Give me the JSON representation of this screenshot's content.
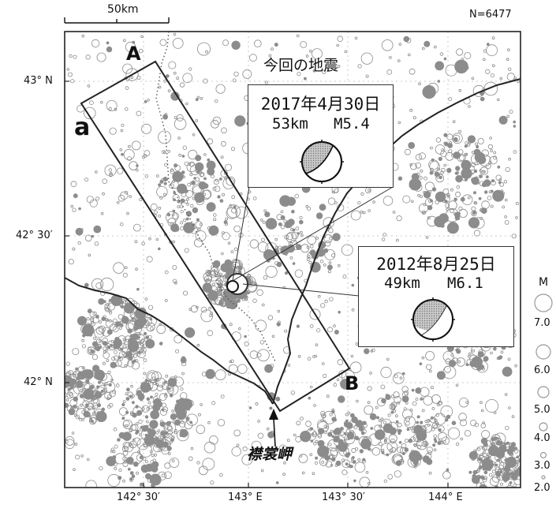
{
  "scale_bar": {
    "label": "50km"
  },
  "count_label": "N=6477",
  "map_title": "今回の地震",
  "profile": {
    "start_label": "A",
    "end_label": "B"
  },
  "panel_label": "a",
  "place_label": "襟裳岬",
  "latitude_labels": [
    "43° N",
    "42° 30′",
    "42° N"
  ],
  "longitude_labels": [
    "142° 30′",
    "143° E",
    "143° 30′",
    "144° E"
  ],
  "events": [
    {
      "date": "2017年4月30日",
      "depth": "53km",
      "magnitude": "M5.4"
    },
    {
      "date": "2012年8月25日",
      "depth": "49km",
      "magnitude": "M6.1"
    }
  ],
  "legend": {
    "title": "M",
    "values": [
      "7.0",
      "6.0",
      "5.0",
      "4.0",
      "3.0",
      "2.0"
    ]
  },
  "colors": {
    "seismicity": "#8c8c8c",
    "frame": "#222222",
    "mechanism_fill": "#b0b0b0"
  }
}
